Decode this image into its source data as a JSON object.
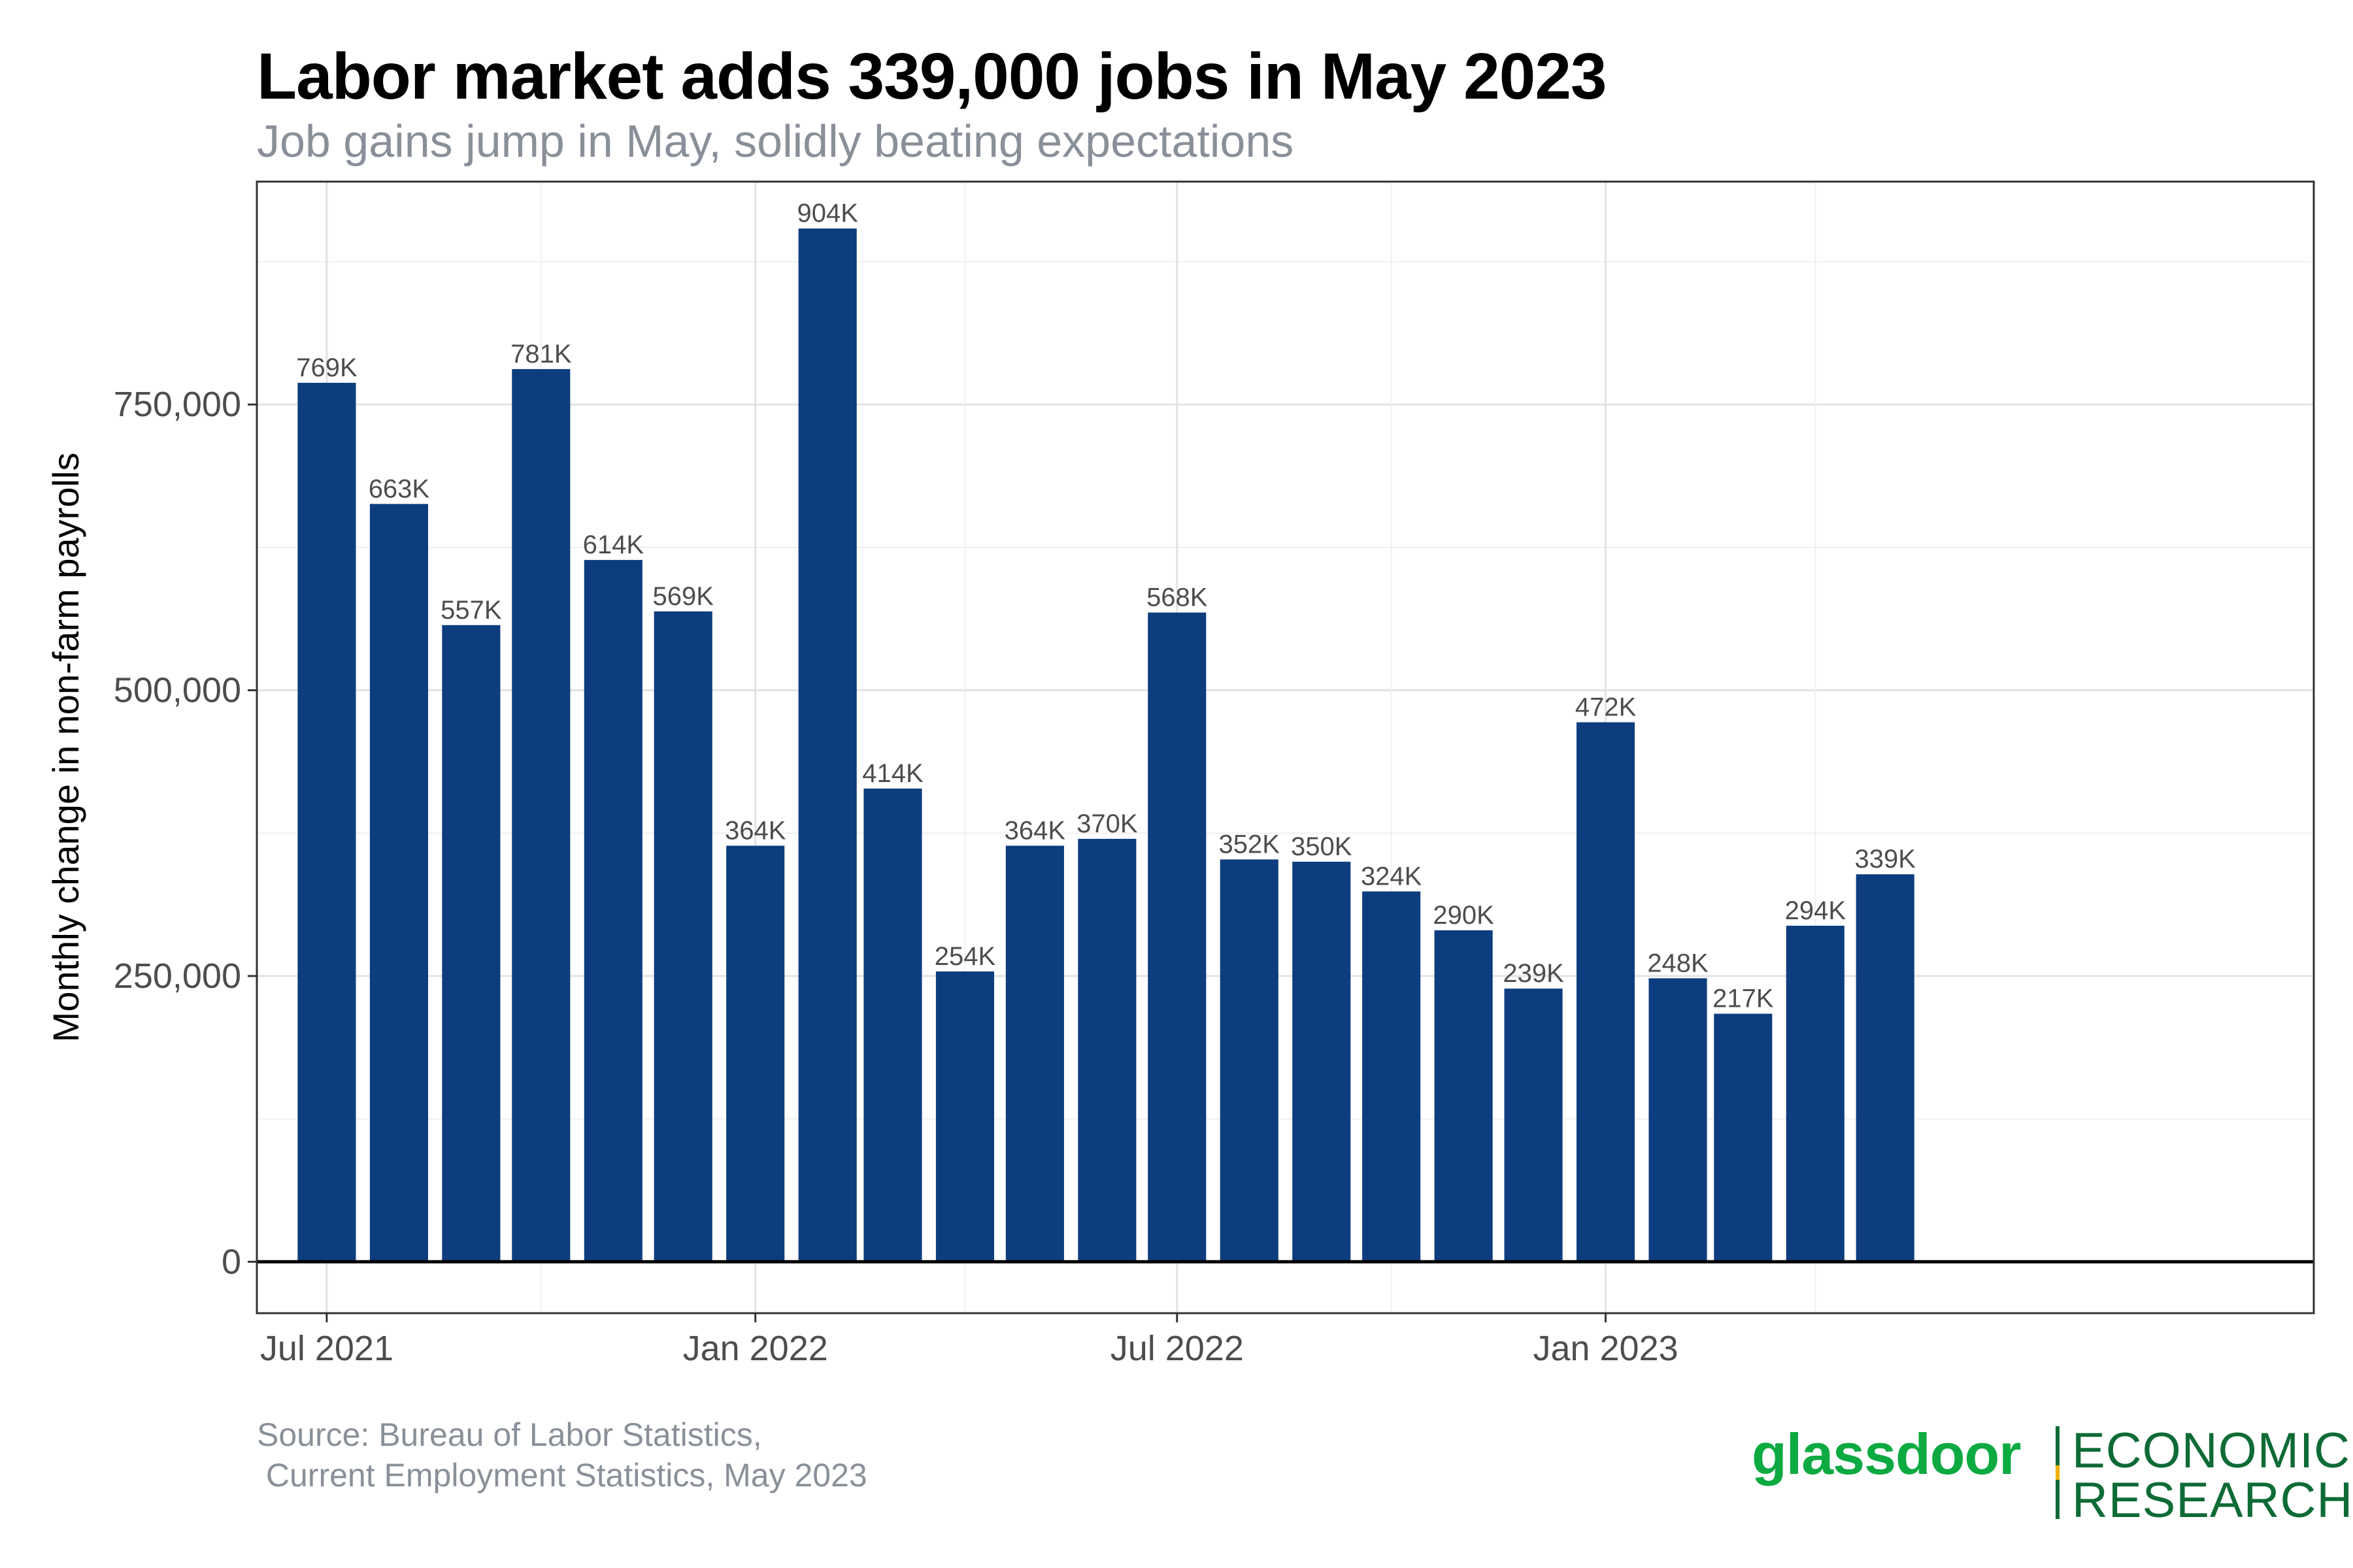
{
  "title": "Labor market adds 339,000 jobs in May 2023",
  "subtitle": "Job gains jump in May, solidly beating expectations",
  "source": {
    "line1": "Source: Bureau of Labor Statistics,",
    "line2": " Current Employment Statistics, May 2023"
  },
  "logo": {
    "wordmark": "glassdoor",
    "line1": "ECONOMIC",
    "line2": "RESEARCH"
  },
  "colors": {
    "bar": "#0d3d7e",
    "brand_green": "#0caa41",
    "dark_green": "#0e6b36",
    "accent_yellow": "#f2b200"
  },
  "chart_data": {
    "type": "bar",
    "title": "Labor market adds 339,000 jobs in May 2023",
    "subtitle": "Job gains jump in May, solidly beating expectations",
    "xlabel": "",
    "ylabel": "Monthly change in non-farm payrolls",
    "ylim": [
      -45000,
      945000
    ],
    "yticks": [
      0,
      250000,
      500000,
      750000
    ],
    "ytick_labels": [
      "0",
      "250,000",
      "500,000",
      "750,000"
    ],
    "xlim": [
      "2021-06-01",
      "2023-11-01"
    ],
    "xticks": [
      "2021-07-01",
      "2022-01-01",
      "2022-07-01",
      "2023-01-01"
    ],
    "xtick_labels": [
      "Jul 2021",
      "Jan 2022",
      "Jul 2022",
      "Jan 2023"
    ],
    "x": [
      "2021-07-01",
      "2021-08-01",
      "2021-09-01",
      "2021-10-01",
      "2021-11-01",
      "2021-12-01",
      "2022-01-01",
      "2022-02-01",
      "2022-03-01",
      "2022-04-01",
      "2022-05-01",
      "2022-06-01",
      "2022-07-01",
      "2022-08-01",
      "2022-09-01",
      "2022-10-01",
      "2022-11-01",
      "2022-12-01",
      "2023-01-01",
      "2023-02-01",
      "2023-03-01",
      "2023-04-01",
      "2023-05-01"
    ],
    "values": [
      769000,
      663000,
      557000,
      781000,
      614000,
      569000,
      364000,
      904000,
      414000,
      254000,
      364000,
      370000,
      568000,
      352000,
      350000,
      324000,
      290000,
      239000,
      472000,
      248000,
      217000,
      294000,
      339000
    ],
    "data_labels": [
      "769K",
      "663K",
      "557K",
      "781K",
      "614K",
      "569K",
      "364K",
      "904K",
      "414K",
      "254K",
      "364K",
      "370K",
      "568K",
      "352K",
      "350K",
      "324K",
      "290K",
      "239K",
      "472K",
      "248K",
      "217K",
      "294K",
      "339K"
    ],
    "grid": true,
    "legend": "none"
  }
}
